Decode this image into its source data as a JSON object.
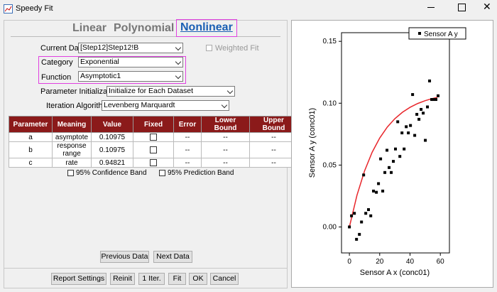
{
  "window": {
    "title": "Speedy Fit"
  },
  "tabs": [
    "Linear",
    "Polynomial",
    "Nonlinear"
  ],
  "form": {
    "current_data": {
      "label": "Current Data",
      "value": "[Step12]Step12!B"
    },
    "weighted_fit": "Weighted Fit",
    "category": {
      "label": "Category",
      "value": "Exponential"
    },
    "function": {
      "label": "Function",
      "value": "Asymptotic1"
    },
    "parameter_initialization": {
      "label": "Parameter Initialization",
      "value": "Initialize for Each Dataset"
    },
    "iteration_algorithm": {
      "label": "Iteration Algorithm",
      "value": "Levenberg Marquardt"
    }
  },
  "table": {
    "columns": [
      "Parameter",
      "Meaning",
      "Value",
      "Fixed",
      "Error",
      "Lower Bound",
      "Upper Bound"
    ],
    "rows": [
      {
        "parameter": "a",
        "meaning": "asymptote",
        "value": "0.10975",
        "error": "--",
        "lower_bound": "--",
        "upper_bound": "--"
      },
      {
        "parameter": "b",
        "meaning": "response range",
        "value": "0.10975",
        "error": "--",
        "lower_bound": "--",
        "upper_bound": "--"
      },
      {
        "parameter": "c",
        "meaning": "rate",
        "value": "0.94821",
        "error": "--",
        "lower_bound": "--",
        "upper_bound": "--"
      }
    ]
  },
  "options": {
    "confidence_band": "95% Confidence Band",
    "prediction_band": "95% Prediction Band"
  },
  "nav_buttons": [
    "Previous Data",
    "Next Data"
  ],
  "buttons": [
    "Report Settings",
    "Reinit",
    "1 Iter.",
    "Fit",
    "OK",
    "Cancel"
  ],
  "plot": {
    "type": "scatter",
    "x_label": "Sensor A x (conc01)",
    "y_label": "Sensor A y (conc01)",
    "xlim": [
      -5.2,
      66
    ],
    "ylim": [
      -0.021,
      0.157
    ],
    "xticks": [
      0,
      20,
      40,
      60
    ],
    "yticks": [
      {
        "value": 0,
        "label": "0.00"
      },
      0.05,
      {
        "value": 0.1,
        "label": "0.10"
      },
      0.15
    ],
    "series": [
      {
        "name": "Sensor A y",
        "color": "#000000",
        "x": [
          0,
          1.4,
          3.3,
          4.7,
          6.6,
          8.0,
          9.4,
          10.8,
          12.6,
          14.1,
          15.9,
          17.8,
          19.2,
          20.6,
          22.0,
          23.4,
          24.8,
          26.2,
          27.6,
          29.0,
          30.4,
          31.9,
          33.3,
          34.7,
          36.1,
          37.5,
          38.9,
          40.3,
          41.7,
          43.1,
          44.5,
          45.9,
          47.3,
          48.7,
          50.1,
          51.5,
          52.9,
          54.3,
          55.7,
          57.1,
          58.5
        ],
        "y": [
          0.0,
          0.009,
          0.011,
          -0.01,
          -0.006,
          0.004,
          0.042,
          0.011,
          0.014,
          0.009,
          0.029,
          0.028,
          0.035,
          0.055,
          0.029,
          0.044,
          0.062,
          0.048,
          0.044,
          0.053,
          0.063,
          0.085,
          0.057,
          0.076,
          0.063,
          0.081,
          0.076,
          0.082,
          0.107,
          0.074,
          0.091,
          0.087,
          0.095,
          0.092,
          0.07,
          0.097,
          0.118,
          0.103,
          0.103,
          0.103,
          0.106
        ]
      }
    ],
    "fit": {
      "color": "#e8262b",
      "x": [
        0,
        5,
        10,
        15,
        20,
        25,
        30,
        35,
        40,
        45,
        50,
        55,
        58
      ],
      "y": [
        0,
        0.02563,
        0.04527,
        0.06032,
        0.07186,
        0.08071,
        0.08749,
        0.09269,
        0.09667,
        0.09973,
        0.10207,
        0.10386,
        0.10472
      ]
    }
  }
}
